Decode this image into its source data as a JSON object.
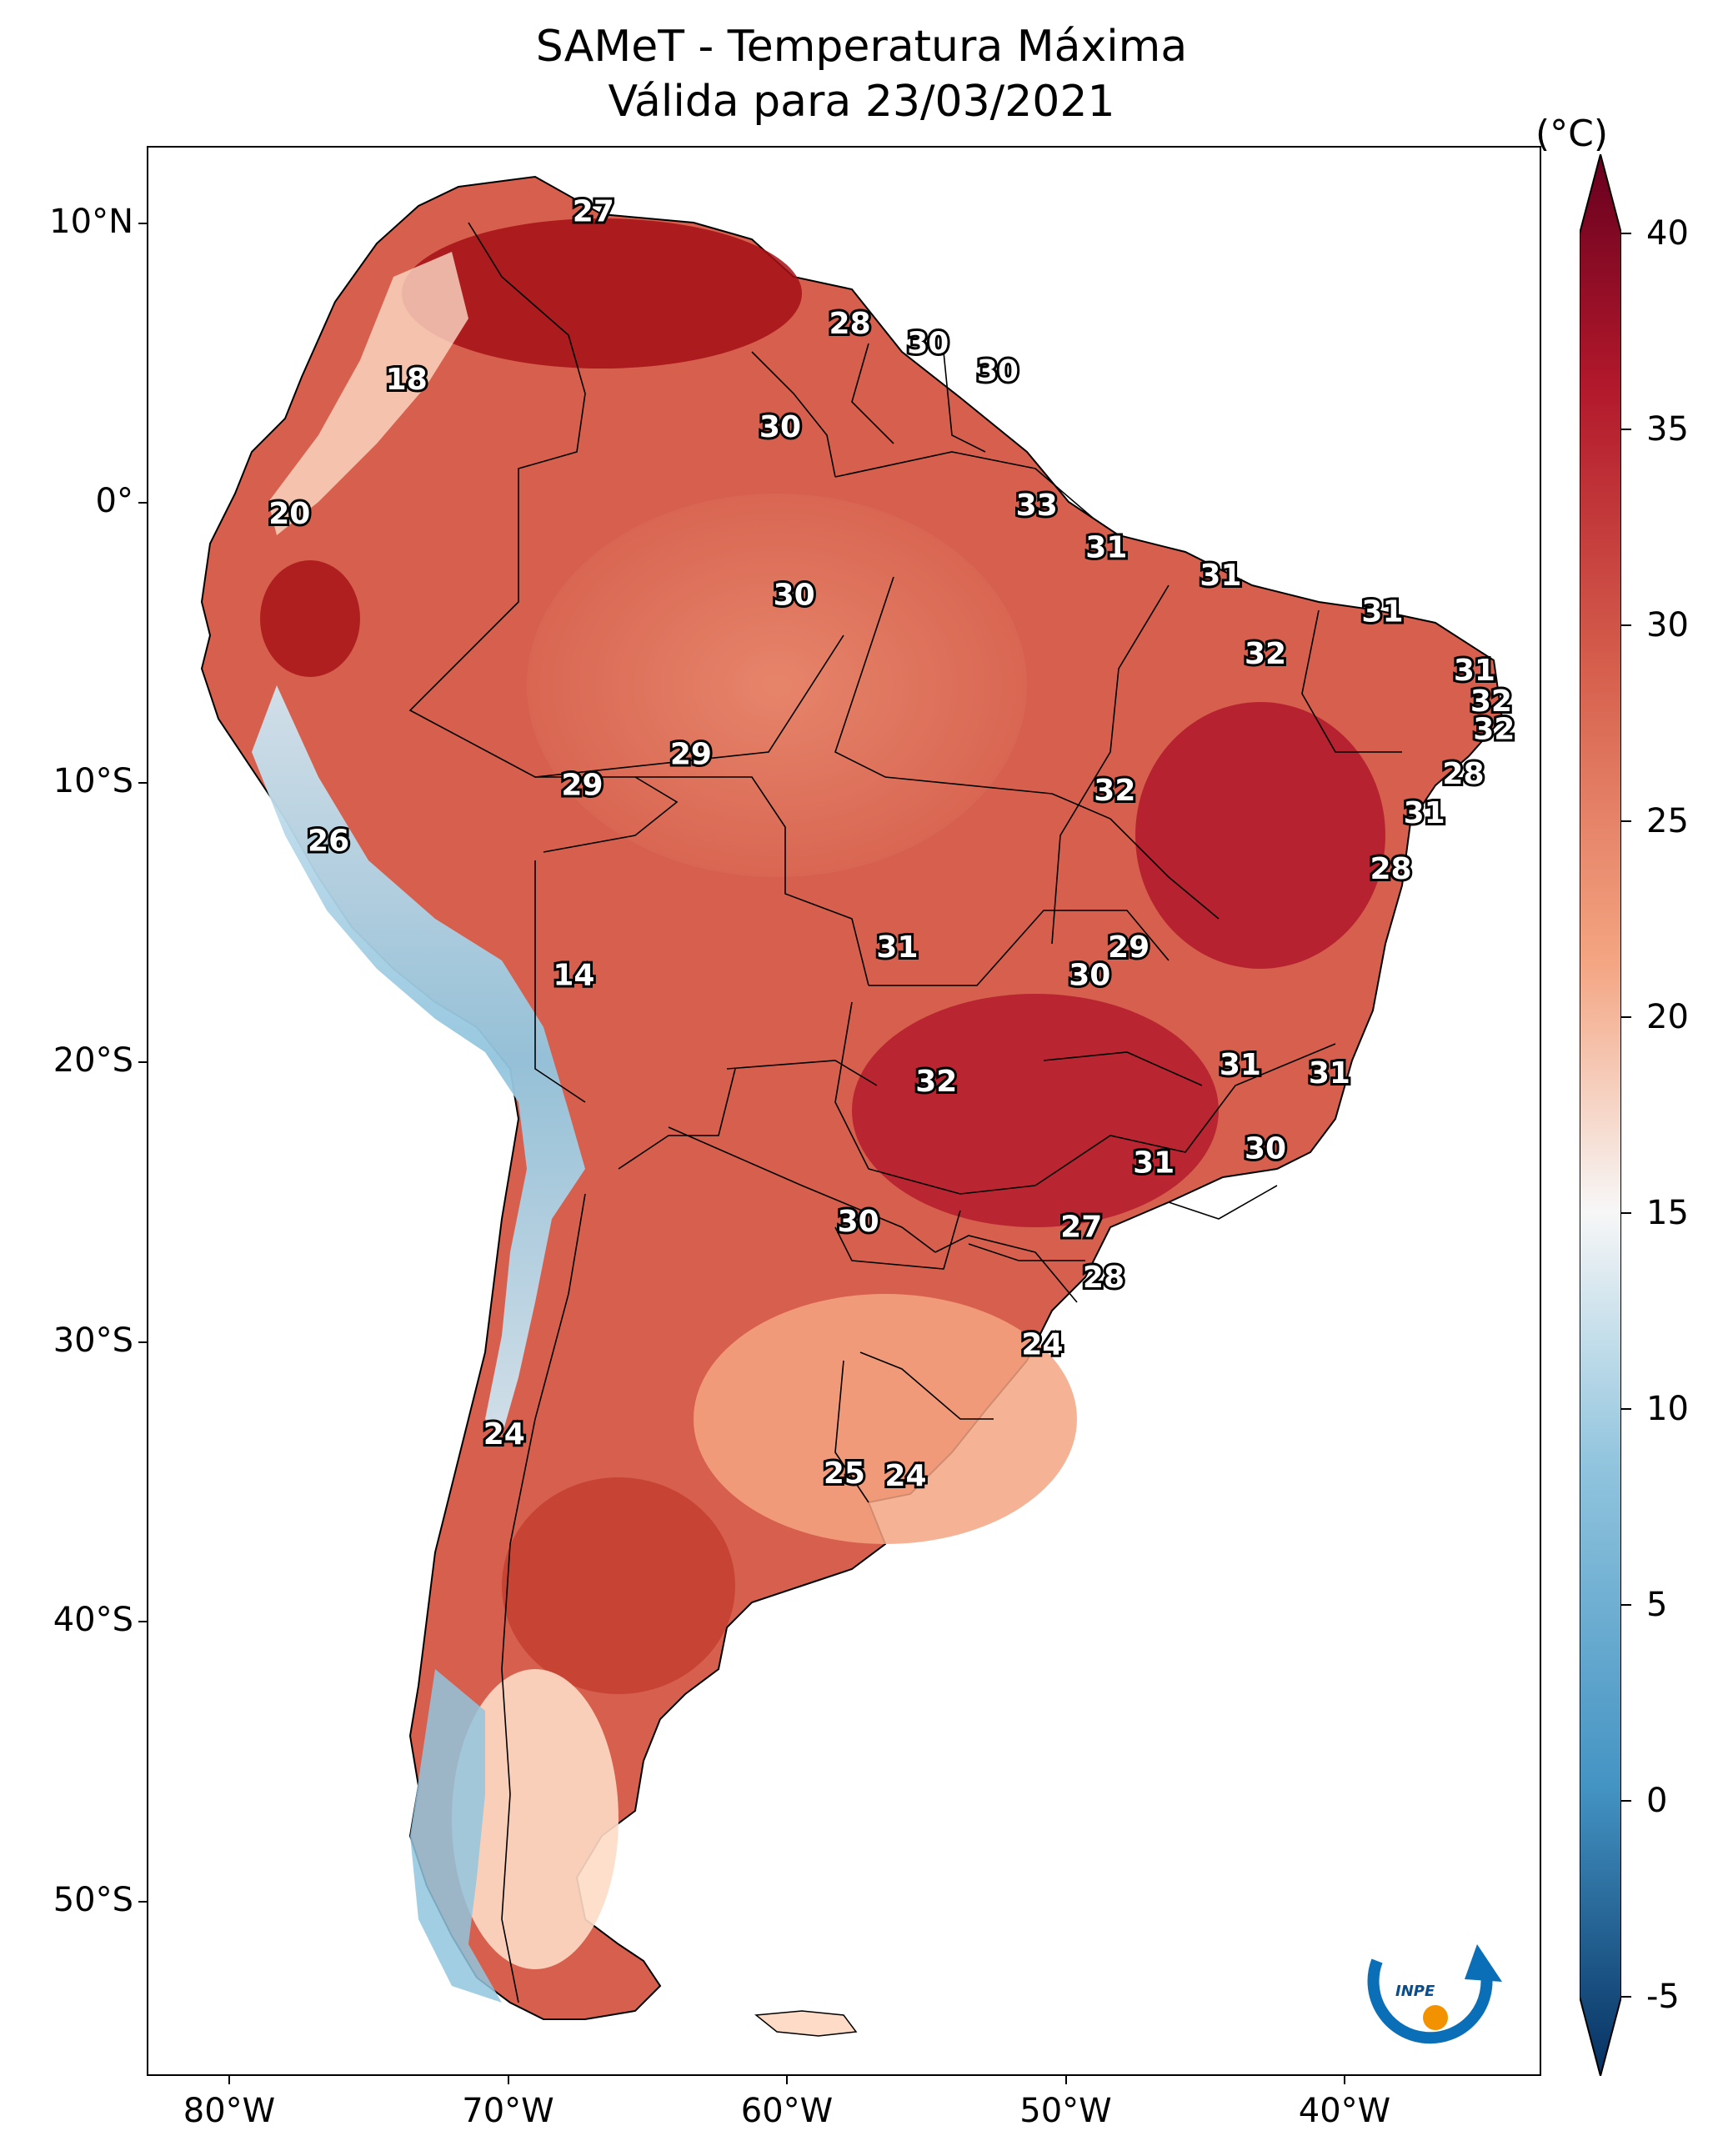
{
  "title": {
    "line1": "SAMeT - Temperatura Máxima",
    "line2": "Válida para 23/03/2021"
  },
  "axes": {
    "lat_ticks": [
      "10°N",
      "0°",
      "10°S",
      "20°S",
      "30°S",
      "40°S",
      "50°S"
    ],
    "lon_ticks": [
      "80°W",
      "70°W",
      "60°W",
      "50°W",
      "40°W"
    ]
  },
  "colorbar": {
    "unit": "(°C)",
    "ticks": [
      "40",
      "35",
      "30",
      "25",
      "20",
      "15",
      "10",
      "5",
      "0",
      "-5"
    ],
    "min": -5,
    "max": 40,
    "colors": {
      "hot": "#67001f",
      "warm": "#d6604d",
      "mild": "#f4a582",
      "neutral": "#f7f7f7",
      "cool": "#92c5de",
      "cold": "#2166ac",
      "coldest": "#053061"
    }
  },
  "labels": [
    {
      "text": "27",
      "lon": -67.0,
      "lat": 10.5
    },
    {
      "text": "28",
      "lon": -57.8,
      "lat": 6.5
    },
    {
      "text": "30",
      "lon": -55.0,
      "lat": 5.8
    },
    {
      "text": "30",
      "lon": -52.5,
      "lat": 4.8
    },
    {
      "text": "18",
      "lon": -73.7,
      "lat": 4.5
    },
    {
      "text": "30",
      "lon": -60.3,
      "lat": 2.8
    },
    {
      "text": "33",
      "lon": -51.1,
      "lat": 0.0
    },
    {
      "text": "20",
      "lon": -77.9,
      "lat": -0.3
    },
    {
      "text": "31",
      "lon": -48.6,
      "lat": -1.5
    },
    {
      "text": "31",
      "lon": -44.5,
      "lat": -2.5
    },
    {
      "text": "30",
      "lon": -59.8,
      "lat": -3.2
    },
    {
      "text": "31",
      "lon": -38.7,
      "lat": -3.8
    },
    {
      "text": "32",
      "lon": -42.9,
      "lat": -5.3
    },
    {
      "text": "31",
      "lon": -35.4,
      "lat": -5.9
    },
    {
      "text": "32",
      "lon": -34.8,
      "lat": -7.0
    },
    {
      "text": "32",
      "lon": -34.7,
      "lat": -8.0
    },
    {
      "text": "29",
      "lon": -63.5,
      "lat": -8.9
    },
    {
      "text": "28",
      "lon": -35.8,
      "lat": -9.6
    },
    {
      "text": "29",
      "lon": -67.4,
      "lat": -10.0
    },
    {
      "text": "32",
      "lon": -48.3,
      "lat": -10.2
    },
    {
      "text": "31",
      "lon": -37.2,
      "lat": -11.0
    },
    {
      "text": "26",
      "lon": -76.5,
      "lat": -12.0
    },
    {
      "text": "28",
      "lon": -38.4,
      "lat": -13.0
    },
    {
      "text": "31",
      "lon": -56.1,
      "lat": -15.8
    },
    {
      "text": "29",
      "lon": -47.8,
      "lat": -15.8
    },
    {
      "text": "30",
      "lon": -49.2,
      "lat": -16.8
    },
    {
      "text": "14",
      "lon": -67.7,
      "lat": -16.8
    },
    {
      "text": "31",
      "lon": -43.8,
      "lat": -20.0
    },
    {
      "text": "31",
      "lon": -40.6,
      "lat": -20.3
    },
    {
      "text": "32",
      "lon": -54.7,
      "lat": -20.6
    },
    {
      "text": "30",
      "lon": -42.9,
      "lat": -23.0
    },
    {
      "text": "31",
      "lon": -46.9,
      "lat": -23.5
    },
    {
      "text": "27",
      "lon": -49.5,
      "lat": -25.8
    },
    {
      "text": "30",
      "lon": -57.5,
      "lat": -25.6
    },
    {
      "text": "28",
      "lon": -48.7,
      "lat": -27.6
    },
    {
      "text": "24",
      "lon": -50.9,
      "lat": -30.0
    },
    {
      "text": "24",
      "lon": -70.2,
      "lat": -33.2
    },
    {
      "text": "25",
      "lon": -58.0,
      "lat": -34.6
    },
    {
      "text": "24",
      "lon": -55.8,
      "lat": -34.7
    }
  ],
  "logo": {
    "text": "INPE"
  }
}
